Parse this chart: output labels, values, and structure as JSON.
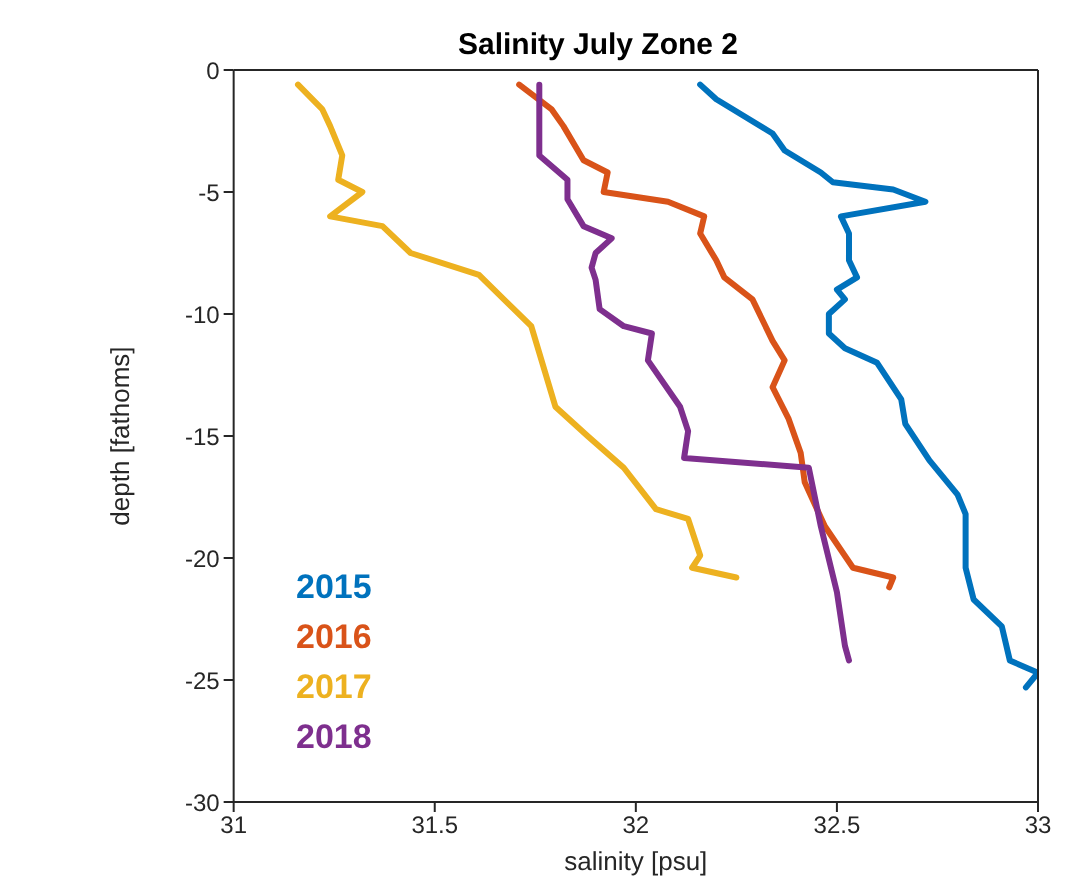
{
  "chart_data": {
    "type": "line",
    "title": "Salinity July Zone 2",
    "xlabel": "salinity [psu]",
    "ylabel": "depth [fathoms]",
    "xlim": [
      31,
      33
    ],
    "xticks": [
      31,
      31.5,
      32,
      32.5,
      33
    ],
    "ylim": [
      -30,
      0
    ],
    "yticks": [
      -30,
      -25,
      -20,
      -15,
      -10,
      -5,
      0
    ],
    "grid": false,
    "legend": "bottom left",
    "marker": "none",
    "line_style": "solid",
    "series": [
      {
        "name": "2015",
        "color": "#0072bd",
        "x": [
          32.16,
          32.2,
          32.34,
          32.37,
          32.46,
          32.49,
          32.64,
          32.72,
          32.51,
          32.53,
          32.53,
          32.55,
          32.5,
          32.52,
          32.48,
          32.48,
          32.52,
          32.6,
          32.66,
          32.67,
          32.73,
          32.8,
          32.82,
          32.82,
          32.84,
          32.91,
          32.93,
          33.0,
          32.97
        ],
        "values": [
          -0.6,
          -1.2,
          -2.6,
          -3.3,
          -4.2,
          -4.6,
          -4.9,
          -5.4,
          -6.0,
          -6.7,
          -7.8,
          -8.5,
          -9.0,
          -9.4,
          -10.0,
          -10.8,
          -11.4,
          -12.0,
          -13.5,
          -14.5,
          -16.0,
          -17.4,
          -18.2,
          -20.4,
          -21.7,
          -22.8,
          -24.2,
          -24.7,
          -25.3
        ]
      },
      {
        "name": "2016",
        "color": "#d95319",
        "x": [
          31.71,
          31.79,
          31.82,
          31.87,
          31.93,
          31.92,
          32.08,
          32.17,
          32.16,
          32.2,
          32.22,
          32.29,
          32.34,
          32.37,
          32.34,
          32.38,
          32.41,
          32.42,
          32.47,
          32.54,
          32.64,
          32.63
        ],
        "values": [
          -0.6,
          -1.6,
          -2.3,
          -3.7,
          -4.2,
          -5.0,
          -5.4,
          -6.0,
          -6.7,
          -7.8,
          -8.5,
          -9.4,
          -11.1,
          -11.9,
          -13.0,
          -14.3,
          -15.7,
          -16.9,
          -18.7,
          -20.4,
          -20.8,
          -21.2
        ]
      },
      {
        "name": "2017",
        "color": "#edb120",
        "x": [
          31.16,
          31.22,
          31.24,
          31.26,
          31.27,
          31.26,
          31.32,
          31.24,
          31.37,
          31.44,
          31.61,
          31.74,
          31.8,
          31.88,
          31.97,
          32.05,
          32.13,
          32.16,
          32.14,
          32.25
        ],
        "values": [
          -0.6,
          -1.6,
          -2.3,
          -3.1,
          -3.5,
          -4.5,
          -5.0,
          -6.0,
          -6.4,
          -7.5,
          -8.4,
          -10.5,
          -13.8,
          -15.0,
          -16.3,
          -18.0,
          -18.4,
          -19.9,
          -20.4,
          -20.8
        ]
      },
      {
        "name": "2018",
        "color": "#7e2f8e",
        "x": [
          31.76,
          31.76,
          31.76,
          31.83,
          31.83,
          31.87,
          31.94,
          31.9,
          31.89,
          31.9,
          31.91,
          31.97,
          32.04,
          32.03,
          32.11,
          32.13,
          32.12,
          32.43,
          32.46,
          32.5,
          32.52,
          32.53
        ],
        "values": [
          -0.6,
          -2.6,
          -3.5,
          -4.5,
          -5.3,
          -6.4,
          -6.9,
          -7.5,
          -8.1,
          -8.6,
          -9.8,
          -10.5,
          -10.8,
          -11.9,
          -13.8,
          -14.8,
          -15.9,
          -16.3,
          -18.7,
          -21.4,
          -23.6,
          -24.2
        ]
      }
    ]
  }
}
